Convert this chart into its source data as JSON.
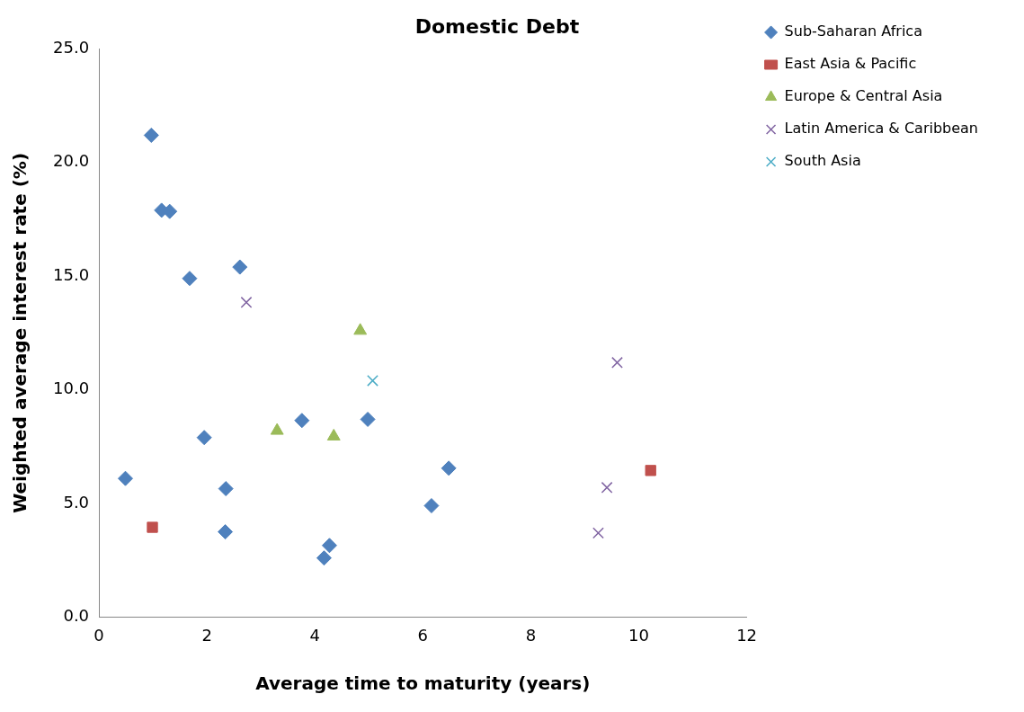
{
  "chart_data": {
    "type": "scatter",
    "title": "Domestic Debt",
    "xlabel": "Average time to maturity (years)",
    "ylabel": "Weighted average interest rate (%)",
    "xlim": [
      0,
      12
    ],
    "xticks": [
      0,
      2,
      4,
      6,
      8,
      10,
      12
    ],
    "ylim": [
      0,
      25
    ],
    "yticks": [
      {
        "value": 0,
        "label": "0.0"
      },
      {
        "value": 5,
        "label": "5.0"
      },
      {
        "value": 10,
        "label": "10.0"
      },
      {
        "value": 15,
        "label": "15.0"
      },
      {
        "value": 20,
        "label": "20.0"
      },
      {
        "value": 25,
        "label": "25.0"
      }
    ],
    "grid": false,
    "legend": "top right",
    "series": [
      {
        "name": "Sub-Saharan Africa",
        "color": "#4f81bd",
        "marker": "diamond",
        "x": [
          0.97,
          1.16,
          1.31,
          1.68,
          2.61,
          1.95,
          0.49,
          2.35,
          2.34,
          3.76,
          4.27,
          4.17,
          4.98,
          6.16,
          6.48
        ],
        "values": [
          21.2,
          17.9,
          17.85,
          14.9,
          15.4,
          7.9,
          6.1,
          5.65,
          3.75,
          8.65,
          3.15,
          2.6,
          8.7,
          4.9,
          6.55
        ]
      },
      {
        "name": "East Asia & Pacific",
        "color": "#c0504d",
        "marker": "square",
        "x": [
          0.99,
          10.22
        ],
        "values": [
          3.95,
          6.45
        ]
      },
      {
        "name": "Europe & Central Asia",
        "color": "#9bbb59",
        "marker": "triangle",
        "x": [
          3.3,
          4.35,
          4.84
        ],
        "values": [
          8.2,
          7.95,
          12.6
        ]
      },
      {
        "name": "Latin America & Caribbean",
        "color": "#8064a2",
        "marker": "cross",
        "x": [
          2.73,
          9.6,
          9.41,
          9.25
        ],
        "values": [
          13.85,
          11.2,
          5.7,
          3.7
        ]
      },
      {
        "name": "South Asia",
        "color": "#4bacc6",
        "marker": "cross",
        "x": [
          5.07
        ],
        "values": [
          10.4
        ]
      }
    ]
  }
}
